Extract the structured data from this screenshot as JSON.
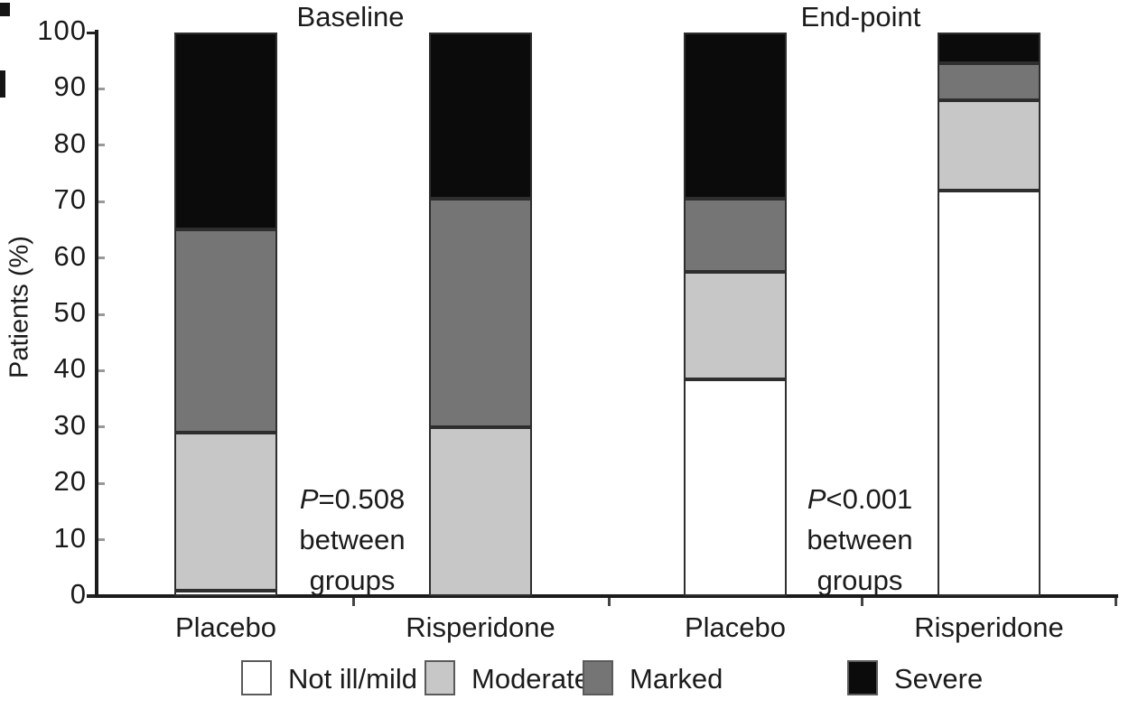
{
  "figure": {
    "background": "#ffffff",
    "text_color": "#1b1b1b"
  },
  "chart_data": {
    "type": "stacked-bar",
    "title": "",
    "group_titles": [
      "Baseline",
      "End-point"
    ],
    "ylabel": "Patients (%)",
    "xlabel": "",
    "ylim": [
      0,
      100
    ],
    "yticks": [
      0,
      10,
      20,
      30,
      40,
      50,
      60,
      70,
      80,
      90,
      100
    ],
    "grid": "off",
    "categories": [
      "Placebo",
      "Risperidone",
      "Placebo",
      "Risperidone"
    ],
    "category_groups": [
      "Baseline",
      "Baseline",
      "End-point",
      "End-point"
    ],
    "series": [
      {
        "name": "Not ill/mild",
        "color": "#ffffff",
        "values": [
          1,
          0,
          38.5,
          72
        ]
      },
      {
        "name": "Moderate",
        "color": "#c7c7c7",
        "values": [
          28,
          30,
          19,
          16
        ]
      },
      {
        "name": "Marked",
        "color": "#757575",
        "values": [
          36,
          40.5,
          13,
          6.5
        ]
      },
      {
        "name": "Severe",
        "color": "#0b0b0b",
        "values": [
          35,
          29.5,
          29.5,
          5.5
        ]
      }
    ],
    "annotations": [
      {
        "p": "P",
        "rest": "=0.508",
        "line2": "between",
        "line3": "groups",
        "location": "between Baseline bars"
      },
      {
        "p": "P",
        "rest": "<0.001",
        "line2": "between",
        "line3": "groups",
        "location": "between End-point bars"
      }
    ],
    "legend": {
      "position": "bottom",
      "labels": [
        "Not ill/mild",
        "Moderate",
        "Marked",
        "Severe"
      ]
    },
    "colors": {
      "not_ill_mild": "#ffffff",
      "moderate": "#c7c7c7",
      "marked": "#757575",
      "severe": "#0b0b0b",
      "segment_outline": "#2e2e2e",
      "axis": "#1b1b1b"
    }
  }
}
